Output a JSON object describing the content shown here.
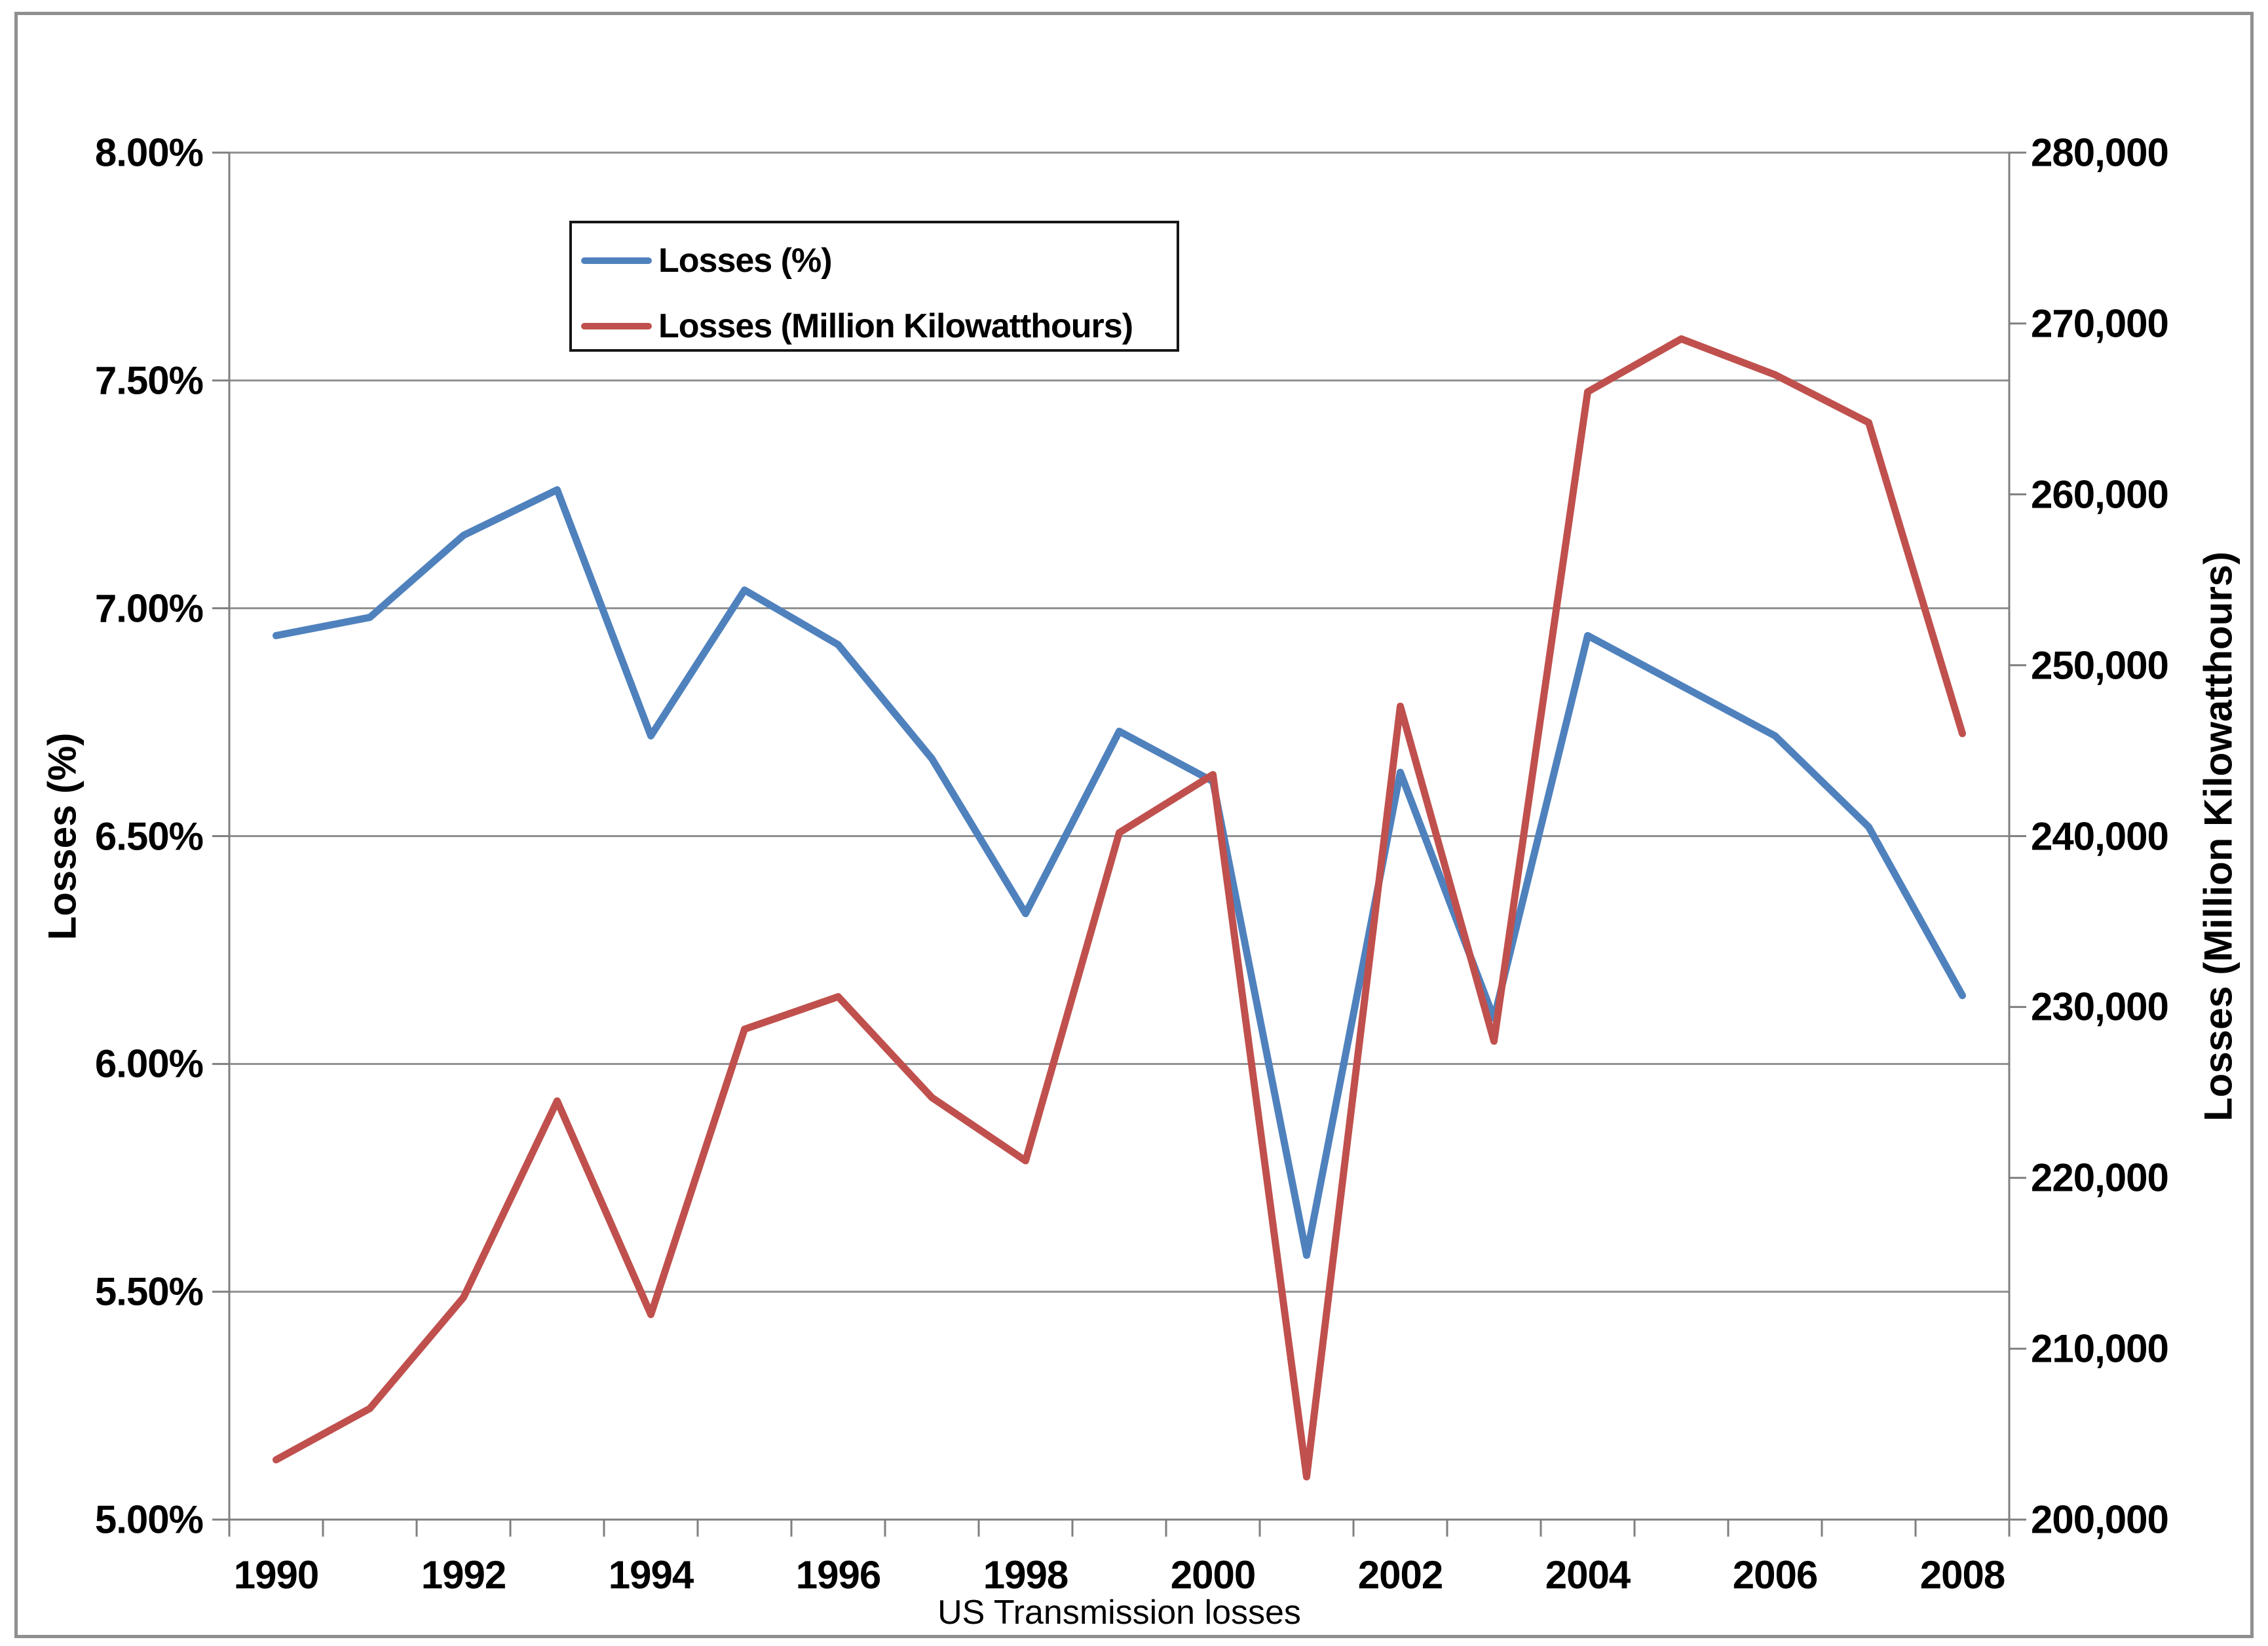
{
  "chart_data": {
    "type": "line",
    "title": "",
    "xlabel": "US Transmission losses",
    "ylabel_left": "Losses (%)",
    "ylabel_right": "Losses (Million Kilowatthours)",
    "grid": true,
    "legend_position": "top-left-inside",
    "x": [
      1990,
      1991,
      1992,
      1993,
      1994,
      1995,
      1996,
      1997,
      1998,
      1999,
      2000,
      2001,
      2002,
      2003,
      2004,
      2005,
      2006,
      2007,
      2008
    ],
    "x_tick_labels": [
      "1990",
      "1992",
      "1994",
      "1996",
      "1998",
      "2000",
      "2002",
      "2004",
      "2006",
      "2008"
    ],
    "left_axis": {
      "min": 5.0,
      "max": 8.0,
      "tick_step": 0.5,
      "tick_labels": [
        "8.00%",
        "7.50%",
        "7.00%",
        "6.50%",
        "6.00%",
        "5.50%",
        "5.00%"
      ]
    },
    "right_axis": {
      "min": 200000,
      "max": 280000,
      "tick_step": 10000,
      "tick_labels": [
        "280,000",
        "270,000",
        "260,000",
        "250,000",
        "240,000",
        "230,000",
        "220,000",
        "210,000",
        "200,000"
      ]
    },
    "series": [
      {
        "name": "Losses (%)",
        "axis": "left",
        "color": "#4F81BD",
        "values": [
          6.94,
          6.98,
          7.16,
          7.26,
          6.72,
          7.04,
          6.92,
          6.67,
          6.33,
          6.73,
          6.62,
          5.58,
          6.64,
          6.1,
          6.94,
          6.83,
          6.72,
          6.52,
          6.15
        ]
      },
      {
        "name": "Losses (Million Kilowatthours)",
        "axis": "right",
        "color": "#C0504D",
        "values": [
          203500,
          206500,
          213000,
          224500,
          212000,
          228700,
          230600,
          224700,
          221000,
          240200,
          243600,
          202500,
          247600,
          228000,
          266000,
          269100,
          267000,
          264200,
          246000
        ]
      }
    ]
  },
  "legend": {
    "items": [
      {
        "label": "Losses (%)",
        "color": "#4F81BD"
      },
      {
        "label": "Losses (Million Kilowatthours)",
        "color": "#C0504D"
      }
    ]
  },
  "colors": {
    "gridline": "#8f8f8f",
    "axis": "#7f7f7f",
    "outer_border": "#8f8f8f",
    "background": "#ffffff",
    "text": "#000000",
    "series_blue": "#4F81BD",
    "series_red": "#C0504D"
  }
}
